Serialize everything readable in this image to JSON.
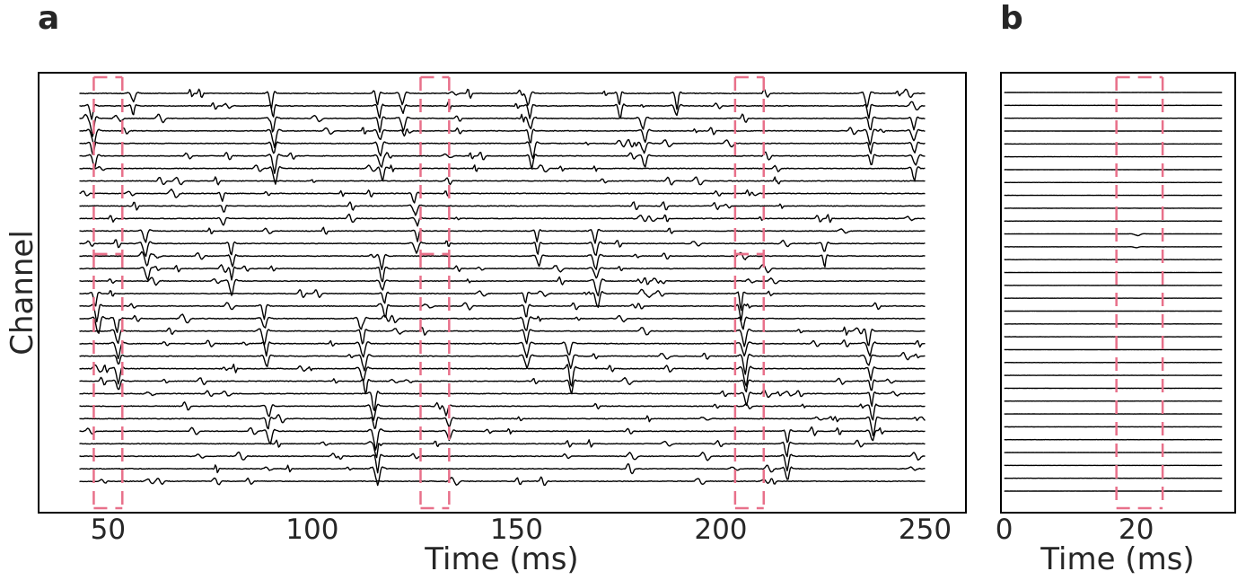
{
  "colors": {
    "trace": "#000000",
    "highlight": "#e8708a",
    "frame": "#000000",
    "text": "#262626"
  },
  "chart_data": [
    {
      "panel": "a",
      "type": "line",
      "xlabel": "Time (ms)",
      "ylabel": "Channel",
      "xlim": [
        33,
        260
      ],
      "xticks": [
        50,
        100,
        150,
        200,
        250
      ],
      "xticklabels": [
        "50",
        "100",
        "150",
        "200",
        "250"
      ],
      "channel_count": 32,
      "trace_x_range": [
        43,
        250
      ],
      "grid": false,
      "highlight_windows": [
        [
          46.5,
          53.5
        ],
        [
          126.5,
          133.5
        ],
        [
          203.5,
          210.5
        ]
      ],
      "spike_events": [
        {
          "time": 46,
          "channels": [
            1,
            2,
            3,
            4,
            5
          ],
          "amp": 1.1
        },
        {
          "time": 47,
          "channels": [
            16,
            17,
            18
          ],
          "amp": 1.2
        },
        {
          "time": 52,
          "channels": [
            18,
            19,
            20,
            21,
            22,
            23
          ],
          "amp": 1.0
        },
        {
          "time": 56,
          "channels": [
            0,
            1
          ],
          "amp": 0.8
        },
        {
          "time": 59,
          "channels": [
            11,
            12,
            13,
            14
          ],
          "amp": 0.9
        },
        {
          "time": 78,
          "channels": [
            8,
            9,
            10
          ],
          "amp": 0.7
        },
        {
          "time": 80,
          "channels": [
            12,
            13,
            14,
            15
          ],
          "amp": 0.9
        },
        {
          "time": 90,
          "channels": [
            0,
            1,
            2,
            3,
            4,
            5,
            6
          ],
          "amp": 1.1
        },
        {
          "time": 88,
          "channels": [
            17,
            18,
            19,
            20,
            21
          ],
          "amp": 0.9
        },
        {
          "time": 89,
          "channels": [
            25,
            26,
            27
          ],
          "amp": 0.9
        },
        {
          "time": 112,
          "channels": [
            18,
            19,
            20,
            21,
            22,
            23
          ],
          "amp": 1.1
        },
        {
          "time": 115,
          "channels": [
            24,
            25,
            26,
            27,
            28,
            29,
            30
          ],
          "amp": 1.3
        },
        {
          "time": 116,
          "channels": [
            0,
            1,
            2,
            3,
            4,
            5,
            6
          ],
          "amp": 1.0
        },
        {
          "time": 117,
          "channels": [
            13,
            14,
            15,
            16,
            17
          ],
          "amp": 1.0
        },
        {
          "time": 122,
          "channels": [
            0,
            1,
            2,
            3
          ],
          "amp": 0.8
        },
        {
          "time": 125,
          "channels": [
            8,
            9,
            10,
            11,
            12
          ],
          "amp": 0.8
        },
        {
          "time": 133,
          "channels": [
            25,
            26,
            27
          ],
          "amp": 0.9
        },
        {
          "time": 153,
          "channels": [
            0,
            1,
            2,
            3,
            4,
            5
          ],
          "amp": 1.0
        },
        {
          "time": 155,
          "channels": [
            11,
            12,
            13
          ],
          "amp": 0.8
        },
        {
          "time": 152,
          "channels": [
            16,
            17,
            18,
            19,
            20,
            21
          ],
          "amp": 1.0
        },
        {
          "time": 163,
          "channels": [
            20,
            21,
            22,
            23
          ],
          "amp": 1.1
        },
        {
          "time": 169,
          "channels": [
            11,
            12,
            13,
            14,
            15,
            16
          ],
          "amp": 1.0
        },
        {
          "time": 175,
          "channels": [
            0,
            1
          ],
          "amp": 0.9
        },
        {
          "time": 181,
          "channels": [
            2,
            3,
            4,
            5
          ],
          "amp": 0.8
        },
        {
          "time": 189,
          "channels": [
            0,
            1
          ],
          "amp": 1.0
        },
        {
          "time": 205,
          "channels": [
            16,
            17,
            18,
            19,
            20,
            21,
            22,
            23,
            24
          ],
          "amp": 1.2
        },
        {
          "time": 216,
          "channels": [
            27,
            28,
            29,
            30
          ],
          "amp": 1.0
        },
        {
          "time": 225,
          "channels": [
            12,
            13
          ],
          "amp": 0.8
        },
        {
          "time": 236,
          "channels": [
            0,
            1,
            2,
            3,
            4,
            5
          ],
          "amp": 1.1
        },
        {
          "time": 236,
          "channels": [
            19,
            20,
            21,
            22,
            23,
            24,
            25,
            26,
            27
          ],
          "amp": 1.1
        },
        {
          "time": 247,
          "channels": [
            2,
            3,
            4,
            5,
            6
          ],
          "amp": 1.0
        }
      ]
    },
    {
      "panel": "b",
      "type": "line",
      "xlabel": "Time (ms)",
      "ylabel": "",
      "xlim": [
        -0.5,
        35
      ],
      "xticks": [
        0,
        20
      ],
      "xticklabels": [
        "0",
        "20"
      ],
      "channel_count": 32,
      "trace_x_range": [
        0,
        33
      ],
      "grid": false,
      "highlight_windows": [
        [
          17,
          24
        ]
      ],
      "spike_events": [
        {
          "time": 20,
          "channels": [
            11
          ],
          "amp": 0.4
        },
        {
          "time": 20,
          "channels": [
            12
          ],
          "amp": 0.2
        }
      ]
    }
  ]
}
